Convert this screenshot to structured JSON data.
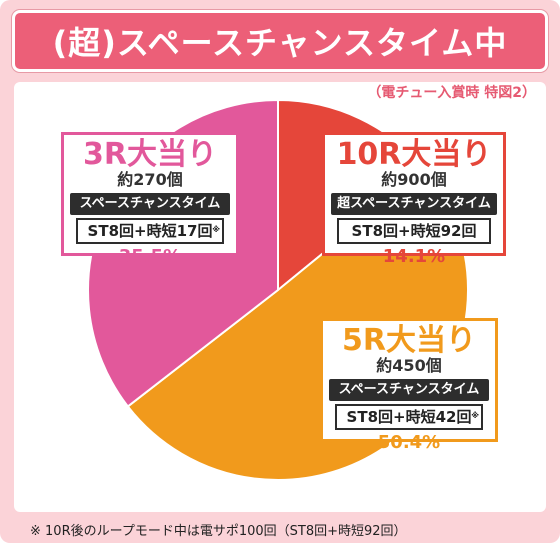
{
  "title": "(超)スペースチャンスタイム中",
  "subtitle": "（電チュー入賞時 特図2）",
  "footnote": "※ 10R後のループモード中は電サポ100回（ST8回+時短92回）",
  "colors": {
    "background": "#fbd3d8",
    "title_bg": "#ec5f78",
    "r10": "#e5463a",
    "r5": "#f19a1c",
    "r3": "#e2589b"
  },
  "chart_data": {
    "type": "pie",
    "title": "(超)スペースチャンスタイム中",
    "subtitle": "（電チュー入賞時 特図2）",
    "slices": [
      {
        "name": "10R大当り",
        "count": "約900個",
        "mode": "超スペースチャンスタイム",
        "st": "ST8回+時短92回",
        "st_mark": "",
        "value": 14.1,
        "label": "14.1%",
        "color": "#e5463a"
      },
      {
        "name": "5R大当り",
        "count": "約450個",
        "mode": "スペースチャンスタイム",
        "st": "ST8回+時短42回",
        "st_mark": "※",
        "value": 50.4,
        "label": "50.4%",
        "color": "#f19a1c"
      },
      {
        "name": "3R大当り",
        "count": "約270個",
        "mode": "スペースチャンスタイム",
        "st": "ST8回+時短17回",
        "st_mark": "※",
        "value": 35.5,
        "label": "35.5%",
        "color": "#e2589b"
      }
    ]
  }
}
